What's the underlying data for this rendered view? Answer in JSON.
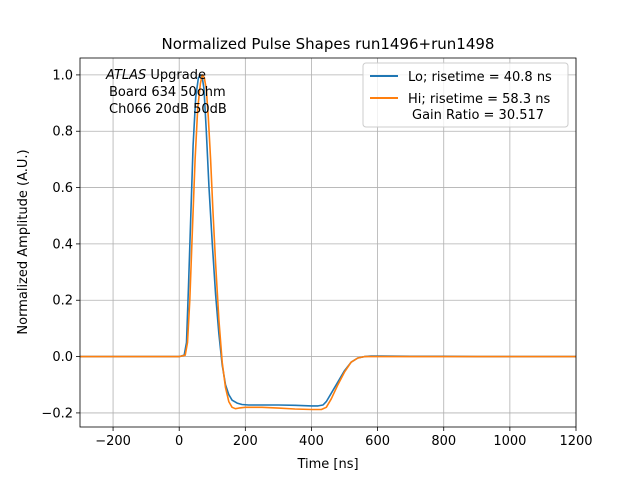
{
  "chart_data": {
    "type": "line",
    "title": "Normalized Pulse Shapes run1496+run1498",
    "xlabel": "Time [ns]",
    "ylabel": "Normalized Amplitude (A.U.)",
    "xlim": [
      -300,
      1200
    ],
    "ylim": [
      -0.25,
      1.06
    ],
    "x_ticks": [
      -200,
      0,
      200,
      400,
      600,
      800,
      1000,
      1200
    ],
    "x_tick_labels": [
      "−200",
      "0",
      "200",
      "400",
      "600",
      "800",
      "1000",
      "1200"
    ],
    "y_ticks": [
      -0.2,
      0.0,
      0.2,
      0.4,
      0.6,
      0.8,
      1.0
    ],
    "y_tick_labels": [
      "−0.2",
      "0.0",
      "0.2",
      "0.4",
      "0.6",
      "0.8",
      "1.0"
    ],
    "grid": true,
    "legend_placement": "top-right",
    "annotation": {
      "atlas": "ATLAS",
      "line1_rest": " Upgrade",
      "line2": "Board 634 50ohm",
      "line3": "Ch066 20dB 50dB"
    },
    "legend_extra": "Gain Ratio = 30.517",
    "series": [
      {
        "name": "Lo; risetime = 40.8 ns",
        "color": "#1f77b4",
        "x": [
          -300,
          0,
          15,
          22,
          28,
          35,
          42,
          50,
          58,
          65,
          70,
          75,
          82,
          90,
          100,
          110,
          120,
          130,
          140,
          150,
          160,
          175,
          190,
          210,
          250,
          300,
          350,
          400,
          420,
          435,
          445,
          460,
          480,
          500,
          520,
          540,
          560,
          580,
          600,
          700,
          800,
          900,
          1000,
          1100,
          1200
        ],
        "y": [
          0.0,
          0.0,
          0.005,
          0.05,
          0.25,
          0.5,
          0.75,
          0.92,
          0.99,
          1.0,
          0.99,
          0.95,
          0.8,
          0.6,
          0.4,
          0.22,
          0.08,
          -0.03,
          -0.1,
          -0.135,
          -0.155,
          -0.165,
          -0.17,
          -0.172,
          -0.172,
          -0.172,
          -0.173,
          -0.175,
          -0.175,
          -0.172,
          -0.16,
          -0.13,
          -0.09,
          -0.05,
          -0.02,
          -0.005,
          0.0,
          0.002,
          0.002,
          0.001,
          0.001,
          0.0,
          0.0,
          0.0,
          0.0
        ]
      },
      {
        "name": "Hi; risetime = 58.3 ns",
        "color": "#ff7f0e",
        "x": [
          -300,
          0,
          18,
          25,
          32,
          40,
          48,
          56,
          64,
          70,
          76,
          82,
          88,
          95,
          102,
          110,
          120,
          130,
          140,
          150,
          160,
          170,
          180,
          200,
          250,
          300,
          350,
          400,
          430,
          445,
          460,
          480,
          500,
          520,
          540,
          560,
          580,
          600,
          700,
          800,
          900,
          1000,
          1100,
          1200
        ],
        "y": [
          0.0,
          0.0,
          0.005,
          0.05,
          0.2,
          0.45,
          0.7,
          0.88,
          0.97,
          1.0,
          0.99,
          0.95,
          0.85,
          0.7,
          0.52,
          0.33,
          0.13,
          -0.02,
          -0.11,
          -0.16,
          -0.18,
          -0.185,
          -0.183,
          -0.18,
          -0.18,
          -0.183,
          -0.186,
          -0.188,
          -0.188,
          -0.18,
          -0.15,
          -0.1,
          -0.055,
          -0.02,
          -0.005,
          0.0,
          0.0,
          0.0,
          0.0,
          0.0,
          0.0,
          0.0,
          0.0,
          0.0
        ]
      }
    ]
  }
}
